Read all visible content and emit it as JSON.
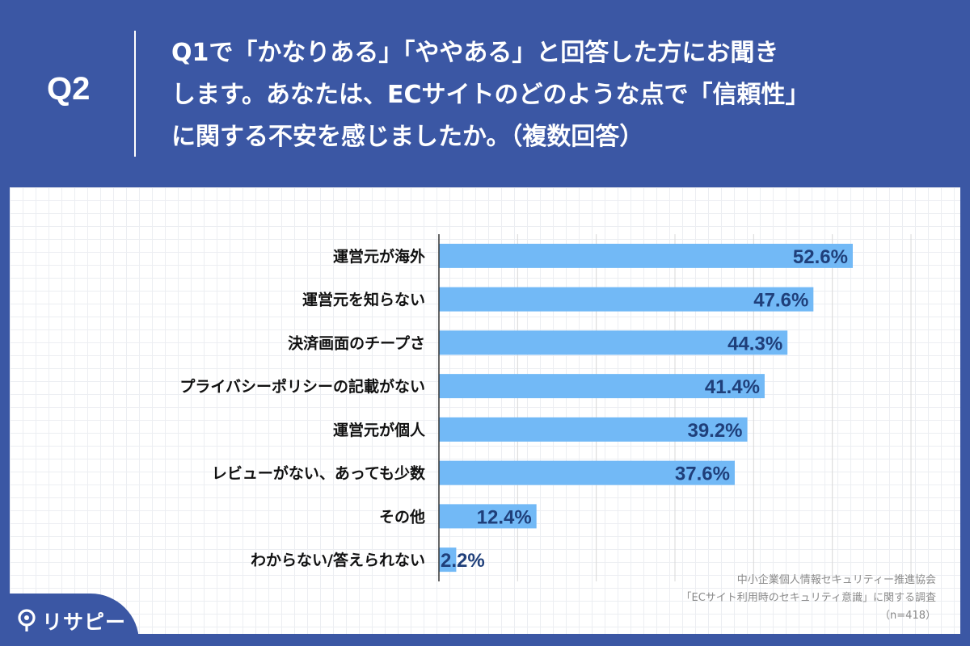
{
  "header": {
    "q_label": "Q2",
    "question_lines": [
      "Q1で「かなりある」「ややある」と回答した方にお聞き",
      "します。あなたは、ECサイトのどのような点で「信頼性」",
      "に関する不安を感じましたか。（複数回答）"
    ]
  },
  "chart_data": {
    "type": "bar",
    "orientation": "horizontal",
    "categories": [
      "運営元が海外",
      "運営元を知らない",
      "決済画面のチープさ",
      "プライバシーポリシーの記載がない",
      "運営元が個人",
      "レビューがない、あっても少数",
      "その他",
      "わからない/答えられない"
    ],
    "values": [
      52.6,
      47.6,
      44.3,
      41.4,
      39.2,
      37.6,
      12.4,
      2.2
    ],
    "value_labels": [
      "52.6%",
      "47.6%",
      "44.3%",
      "41.4%",
      "39.2%",
      "37.6%",
      "12.4%",
      "2.2%"
    ],
    "xlim": [
      0,
      60
    ],
    "grid": true,
    "bar_color": "#72b9f6",
    "label_color": "#1f3f7a"
  },
  "source": {
    "line1": "中小企業個人情報セキュリティー推進協会",
    "line2": "「ECサイト利用時のセキュリティ意識」に関する調査",
    "line3": "（n=418）"
  },
  "logo": {
    "text": "リサピー",
    "icon": "pin-icon"
  },
  "colors": {
    "background": "#3b57a4",
    "panel": "#ffffff"
  }
}
